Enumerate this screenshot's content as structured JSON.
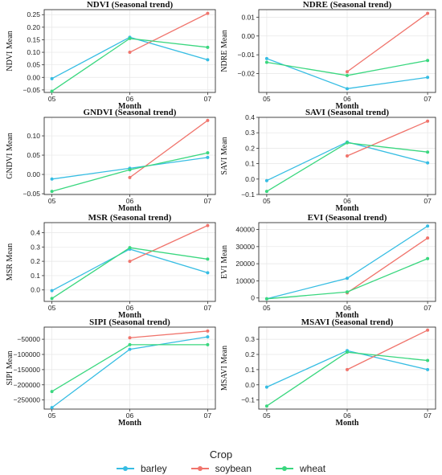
{
  "chart_data": [
    {
      "type": "line",
      "title": "NDVI (Seasonal trend)",
      "xlabel": "Month",
      "ylabel": "NDVI Mean",
      "categories": [
        "05",
        "06",
        "07"
      ],
      "ylim": [
        -0.06,
        0.27
      ],
      "yticks": [
        -0.05,
        0.0,
        0.05,
        0.1,
        0.15,
        0.2,
        0.25
      ],
      "ytick_labels": [
        "−0.05",
        "0.00",
        "0.05",
        "0.10",
        "0.15",
        "0.20",
        "0.25"
      ],
      "grid": true,
      "series": [
        {
          "name": "barley",
          "values": [
            -0.005,
            0.16,
            0.07
          ]
        },
        {
          "name": "soybean",
          "values": [
            null,
            0.1,
            0.255
          ]
        },
        {
          "name": "wheat",
          "values": [
            -0.055,
            0.155,
            0.12
          ]
        }
      ]
    },
    {
      "type": "line",
      "title": "NDRE (Seasonal trend)",
      "xlabel": "Month",
      "ylabel": "NDRE Mean",
      "categories": [
        "05",
        "06",
        "07"
      ],
      "ylim": [
        -0.03,
        0.014
      ],
      "yticks": [
        -0.02,
        -0.01,
        0.0,
        0.01
      ],
      "ytick_labels": [
        "−0.02",
        "−0.01",
        "0.00",
        "0.01"
      ],
      "grid": true,
      "series": [
        {
          "name": "barley",
          "values": [
            -0.012,
            -0.028,
            -0.022
          ]
        },
        {
          "name": "soybean",
          "values": [
            null,
            -0.019,
            0.012
          ]
        },
        {
          "name": "wheat",
          "values": [
            -0.014,
            -0.021,
            -0.013
          ]
        }
      ]
    },
    {
      "type": "line",
      "title": "GNDVI (Seasonal trend)",
      "xlabel": "Month",
      "ylabel": "GNDVI Mean",
      "categories": [
        "05",
        "06",
        "07"
      ],
      "ylim": [
        -0.052,
        0.148
      ],
      "yticks": [
        -0.05,
        0.0,
        0.05,
        0.1
      ],
      "ytick_labels": [
        "−0.05",
        "0.00",
        "0.05",
        "0.10"
      ],
      "grid": true,
      "series": [
        {
          "name": "barley",
          "values": [
            -0.012,
            0.016,
            0.044
          ]
        },
        {
          "name": "soybean",
          "values": [
            null,
            -0.008,
            0.14
          ]
        },
        {
          "name": "wheat",
          "values": [
            -0.044,
            0.012,
            0.056
          ]
        }
      ]
    },
    {
      "type": "line",
      "title": "SAVI (Seasonal trend)",
      "xlabel": "Month",
      "ylabel": "SAVI Mean",
      "categories": [
        "05",
        "06",
        "07"
      ],
      "ylim": [
        -0.1,
        0.4
      ],
      "yticks": [
        -0.1,
        0.0,
        0.1,
        0.2,
        0.3,
        0.4
      ],
      "ytick_labels": [
        "−0.1",
        "0.0",
        "0.1",
        "0.2",
        "0.3",
        "0.4"
      ],
      "grid": true,
      "series": [
        {
          "name": "barley",
          "values": [
            -0.01,
            0.24,
            0.105
          ]
        },
        {
          "name": "soybean",
          "values": [
            null,
            0.15,
            0.375
          ]
        },
        {
          "name": "wheat",
          "values": [
            -0.08,
            0.235,
            0.175
          ]
        }
      ]
    },
    {
      "type": "line",
      "title": "MSR (Seasonal trend)",
      "xlabel": "Month",
      "ylabel": "MSR Mean",
      "categories": [
        "05",
        "06",
        "07"
      ],
      "ylim": [
        -0.08,
        0.47
      ],
      "yticks": [
        0.0,
        0.1,
        0.2,
        0.3,
        0.4
      ],
      "ytick_labels": [
        "0.0",
        "0.1",
        "0.2",
        "0.3",
        "0.4"
      ],
      "grid": true,
      "series": [
        {
          "name": "barley",
          "values": [
            -0.005,
            0.285,
            0.12
          ]
        },
        {
          "name": "soybean",
          "values": [
            null,
            0.2,
            0.45
          ]
        },
        {
          "name": "wheat",
          "values": [
            -0.06,
            0.295,
            0.215
          ]
        }
      ]
    },
    {
      "type": "line",
      "title": "EVI (Seasonal trend)",
      "xlabel": "Month",
      "ylabel": "EVI Mean",
      "categories": [
        "05",
        "06",
        "07"
      ],
      "ylim": [
        -2000,
        44000
      ],
      "yticks": [
        0,
        10000,
        20000,
        30000,
        40000
      ],
      "ytick_labels": [
        "0",
        "10000",
        "20000",
        "30000",
        "40000"
      ],
      "grid": true,
      "series": [
        {
          "name": "barley",
          "values": [
            -500,
            11500,
            42000
          ]
        },
        {
          "name": "soybean",
          "values": [
            null,
            3000,
            35000
          ]
        },
        {
          "name": "wheat",
          "values": [
            -500,
            3500,
            23000
          ]
        }
      ]
    },
    {
      "type": "line",
      "title": "SIPI (Seasonal trend)",
      "xlabel": "Month",
      "ylabel": "SIPI Mean",
      "categories": [
        "05",
        "06",
        "07"
      ],
      "ylim": [
        -280000,
        -10000
      ],
      "yticks": [
        -250000,
        -200000,
        -150000,
        -100000,
        -50000
      ],
      "ytick_labels": [
        "−250000",
        "−200000",
        "−150000",
        "−100000",
        "−50000"
      ],
      "grid": true,
      "series": [
        {
          "name": "barley",
          "values": [
            -275000,
            -83000,
            -42000
          ]
        },
        {
          "name": "soybean",
          "values": [
            null,
            -45000,
            -23000
          ]
        },
        {
          "name": "wheat",
          "values": [
            -222000,
            -68000,
            -68000
          ]
        }
      ]
    },
    {
      "type": "line",
      "title": "MSAVI (Seasonal trend)",
      "xlabel": "Month",
      "ylabel": "MSAVI Mean",
      "categories": [
        "05",
        "06",
        "07"
      ],
      "ylim": [
        -0.16,
        0.38
      ],
      "yticks": [
        -0.1,
        0.0,
        0.1,
        0.2,
        0.3
      ],
      "ytick_labels": [
        "−0.1",
        "0.0",
        "0.1",
        "0.2",
        "0.3"
      ],
      "grid": true,
      "series": [
        {
          "name": "barley",
          "values": [
            -0.015,
            0.225,
            0.1
          ]
        },
        {
          "name": "soybean",
          "values": [
            null,
            0.1,
            0.36
          ]
        },
        {
          "name": "wheat",
          "values": [
            -0.14,
            0.215,
            0.16
          ]
        }
      ]
    }
  ],
  "legend": {
    "title": "Crop",
    "items": [
      {
        "name": "barley",
        "color": "#36bde3"
      },
      {
        "name": "soybean",
        "color": "#f0746c"
      },
      {
        "name": "wheat",
        "color": "#3ad77f"
      }
    ]
  }
}
